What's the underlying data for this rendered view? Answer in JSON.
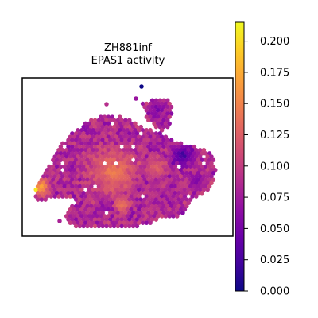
{
  "chart_data": {
    "type": "heatmap",
    "subtype": "spatial-hexbin",
    "title_lines": [
      "ZH881inf",
      "EPAS1 activity"
    ],
    "colormap": "plasma",
    "colorbar": {
      "min": 0.0,
      "max": 0.215,
      "ticks": [
        0.0,
        0.025,
        0.05,
        0.075,
        0.1,
        0.125,
        0.15,
        0.175,
        0.2
      ],
      "tick_labels": [
        "0.000",
        "0.025",
        "0.050",
        "0.075",
        "0.100",
        "0.125",
        "0.150",
        "0.175",
        "0.200"
      ]
    },
    "axes": {
      "x_ticks": "none",
      "y_ticks": "none",
      "frame": true
    },
    "regions": [
      {
        "name": "main tissue body",
        "typical_value": 0.09,
        "range": [
          0.05,
          0.14
        ]
      },
      {
        "name": "central hotspot",
        "typical_value": 0.14,
        "range": [
          0.12,
          0.17
        ]
      },
      {
        "name": "left edge hotspot",
        "typical_value": 0.18,
        "range": [
          0.14,
          0.215
        ]
      },
      {
        "name": "upper-right lobe",
        "typical_value": 0.06,
        "range": [
          0.02,
          0.1
        ]
      },
      {
        "name": "right dark patch",
        "typical_value": 0.02,
        "range": [
          0.0,
          0.05
        ]
      }
    ]
  }
}
